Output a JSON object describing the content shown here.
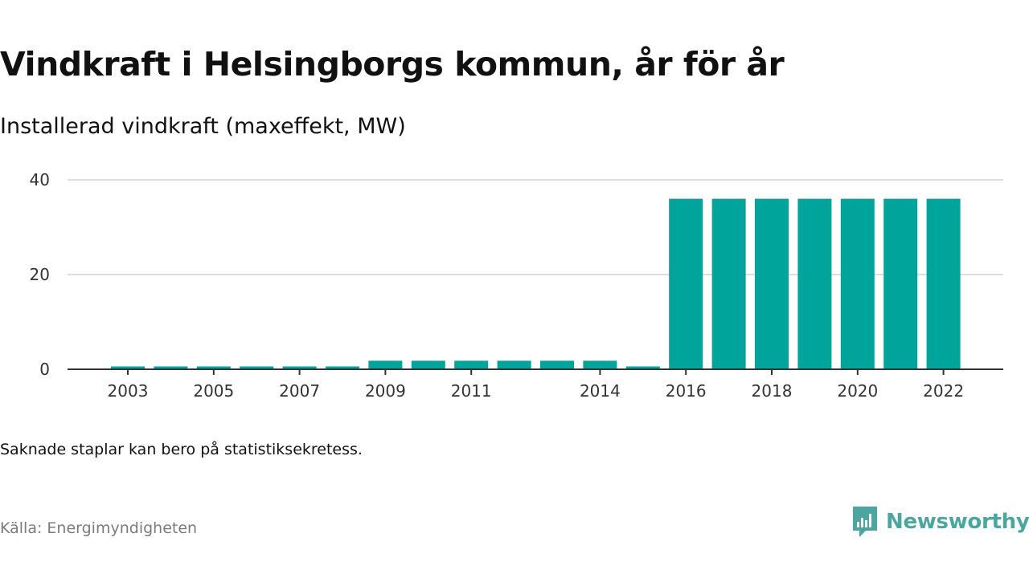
{
  "header": {
    "title": "Vindkraft i Helsingborgs kommun, år för år",
    "subtitle": "Installerad vindkraft (maxeffekt, MW)"
  },
  "footer": {
    "note": "Saknade staplar kan bero på statistiksekretess.",
    "source": "Källa: Energimyndigheten",
    "brand": "Newsworthy",
    "brand_icon": "newsworthy-logo-icon"
  },
  "colors": {
    "bar": "#00a49a",
    "grid": "#dddddd",
    "axis": "#333333",
    "brand": "#4ba69f"
  },
  "chart_data": {
    "type": "bar",
    "categories": [
      "2003",
      "2004",
      "2005",
      "2006",
      "2007",
      "2008",
      "2009",
      "2010",
      "2011",
      "2012",
      "2013",
      "2014",
      "2015",
      "2016",
      "2017",
      "2018",
      "2019",
      "2020",
      "2021",
      "2022"
    ],
    "values": [
      0.6,
      0.6,
      0.6,
      0.6,
      0.6,
      0.6,
      1.8,
      1.8,
      1.8,
      1.8,
      1.8,
      1.8,
      0.6,
      36,
      36,
      36,
      36,
      36,
      36,
      36
    ],
    "tick_labels": [
      "2003",
      "",
      "2005",
      "",
      "2007",
      "",
      "2009",
      "",
      "2011",
      "",
      "",
      "2014",
      "",
      "2016",
      "",
      "2018",
      "",
      "2020",
      "",
      "2022"
    ],
    "y_ticks": [
      0,
      20,
      40
    ],
    "ylim": [
      0,
      40
    ],
    "grid": true,
    "legend": "none",
    "xlabel": "",
    "ylabel": ""
  }
}
